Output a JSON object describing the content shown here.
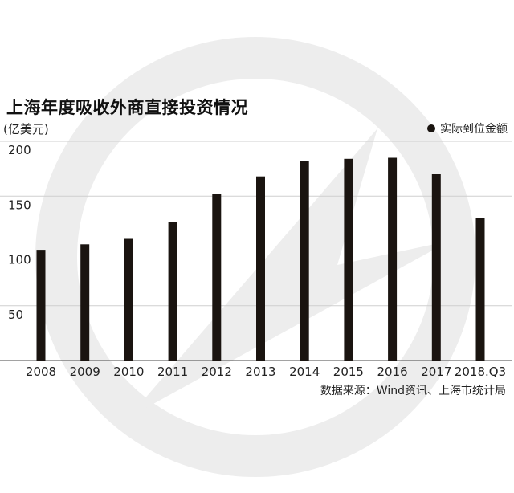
{
  "header": {
    "title": "上海年度吸收外商直接投资情况",
    "unit": "(亿美元)"
  },
  "legend": {
    "label": "实际到位金额"
  },
  "source": "数据来源：Wind资讯、上海市统计局",
  "colors": {
    "bar": "#1a1410",
    "grid": "#cfcfcf",
    "watermark": "#ededed"
  },
  "chart_data": {
    "type": "bar",
    "title": "上海年度吸收外商直接投资情况",
    "ylabel": "(亿美元)",
    "xlabel": "",
    "categories": [
      "2008",
      "2009",
      "2010",
      "2011",
      "2012",
      "2013",
      "2014",
      "2015",
      "2016",
      "2017",
      "2018.Q3"
    ],
    "series": [
      {
        "name": "实际到位金额",
        "values": [
          101,
          106,
          111,
          126,
          152,
          168,
          182,
          184,
          185,
          170,
          130
        ]
      }
    ],
    "ylim": [
      0,
      200
    ],
    "yticks": [
      50,
      100,
      150,
      200
    ],
    "grid": true,
    "legend_position": "top-right"
  }
}
